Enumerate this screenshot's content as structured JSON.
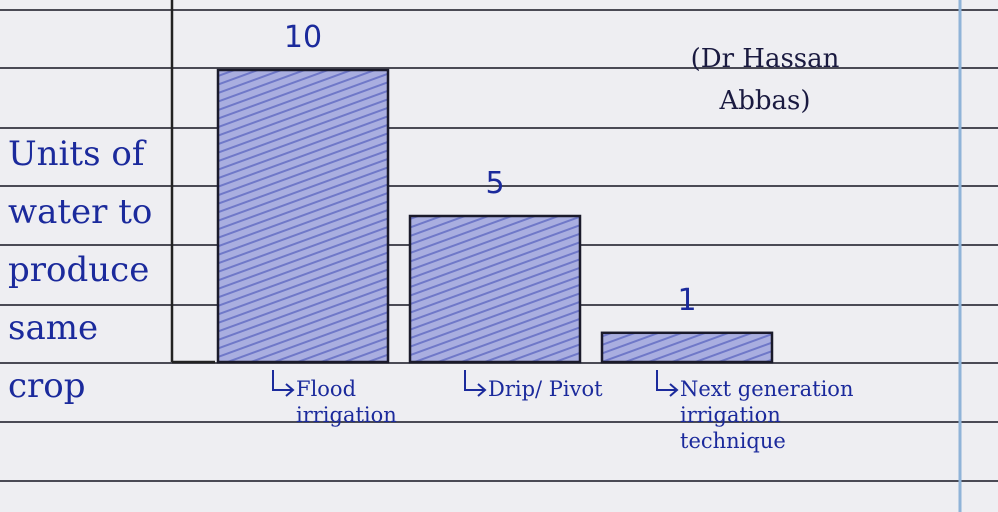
{
  "chart_data": {
    "type": "bar",
    "y_label": "Units of water to produce same crop",
    "annotation": "(Dr Hassan Abbas)",
    "categories": [
      "Flood irrigation",
      "Drip/ Pivot",
      "Next generation irrigation technique"
    ],
    "values": [
      10,
      5,
      1
    ],
    "color": "#a9aee0"
  }
}
